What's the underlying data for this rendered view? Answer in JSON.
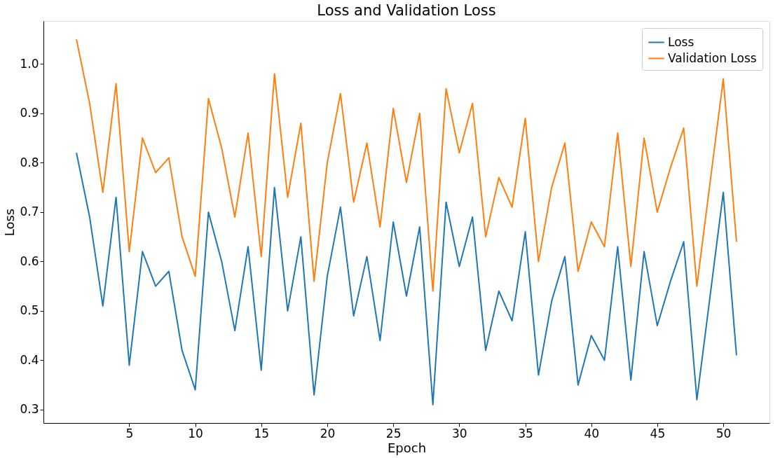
{
  "chart_data": {
    "type": "line",
    "title": "Loss and Validation Loss",
    "xlabel": "Epoch",
    "ylabel": "Loss",
    "x": [
      1,
      2,
      3,
      4,
      5,
      6,
      7,
      8,
      9,
      10,
      11,
      12,
      13,
      14,
      15,
      16,
      17,
      18,
      19,
      20,
      21,
      22,
      23,
      24,
      25,
      26,
      27,
      28,
      29,
      30,
      31,
      32,
      33,
      34,
      35,
      36,
      37,
      38,
      39,
      40,
      41,
      42,
      43,
      44,
      45,
      46,
      47,
      48,
      49,
      50,
      51
    ],
    "series": [
      {
        "name": "Loss",
        "color": "#1f77b4",
        "values": [
          0.82,
          0.69,
          0.51,
          0.73,
          0.39,
          0.62,
          0.55,
          0.58,
          0.42,
          0.34,
          0.7,
          0.6,
          0.46,
          0.63,
          0.38,
          0.75,
          0.5,
          0.65,
          0.33,
          0.57,
          0.71,
          0.49,
          0.61,
          0.44,
          0.68,
          0.53,
          0.67,
          0.31,
          0.72,
          0.59,
          0.69,
          0.42,
          0.54,
          0.48,
          0.66,
          0.37,
          0.52,
          0.61,
          0.35,
          0.45,
          0.4,
          0.63,
          0.36,
          0.62,
          0.47,
          0.56,
          0.64,
          0.32,
          0.53,
          0.74,
          0.41
        ]
      },
      {
        "name": "Validation Loss",
        "color": "#ff7f0e",
        "values": [
          1.05,
          0.92,
          0.74,
          0.96,
          0.62,
          0.85,
          0.78,
          0.81,
          0.65,
          0.57,
          0.93,
          0.83,
          0.69,
          0.86,
          0.61,
          0.98,
          0.73,
          0.88,
          0.56,
          0.8,
          0.94,
          0.72,
          0.84,
          0.67,
          0.91,
          0.76,
          0.9,
          0.54,
          0.95,
          0.82,
          0.92,
          0.65,
          0.77,
          0.71,
          0.89,
          0.6,
          0.75,
          0.84,
          0.58,
          0.68,
          0.63,
          0.86,
          0.59,
          0.85,
          0.7,
          0.79,
          0.87,
          0.55,
          0.76,
          0.97,
          0.64
        ]
      }
    ],
    "xlim": [
      -1.5,
      53.5
    ],
    "xticks": [
      5,
      10,
      15,
      20,
      25,
      30,
      35,
      40,
      45,
      50
    ],
    "ylim": [
      0.273,
      1.087
    ],
    "yticks": [
      {
        "value": 0.3,
        "label": "0.3"
      },
      {
        "value": 0.4,
        "label": "0.4"
      },
      {
        "value": 0.5,
        "label": "0.5"
      },
      {
        "value": 0.6,
        "label": "0.6"
      },
      {
        "value": 0.7,
        "label": "0.7"
      },
      {
        "value": 0.8,
        "label": "0.8"
      },
      {
        "value": 0.9,
        "label": "0.9"
      },
      {
        "value": 1.0,
        "label": "1.0"
      }
    ],
    "grid": false,
    "legend": "top right",
    "marker": "none",
    "line_style": "solid"
  }
}
